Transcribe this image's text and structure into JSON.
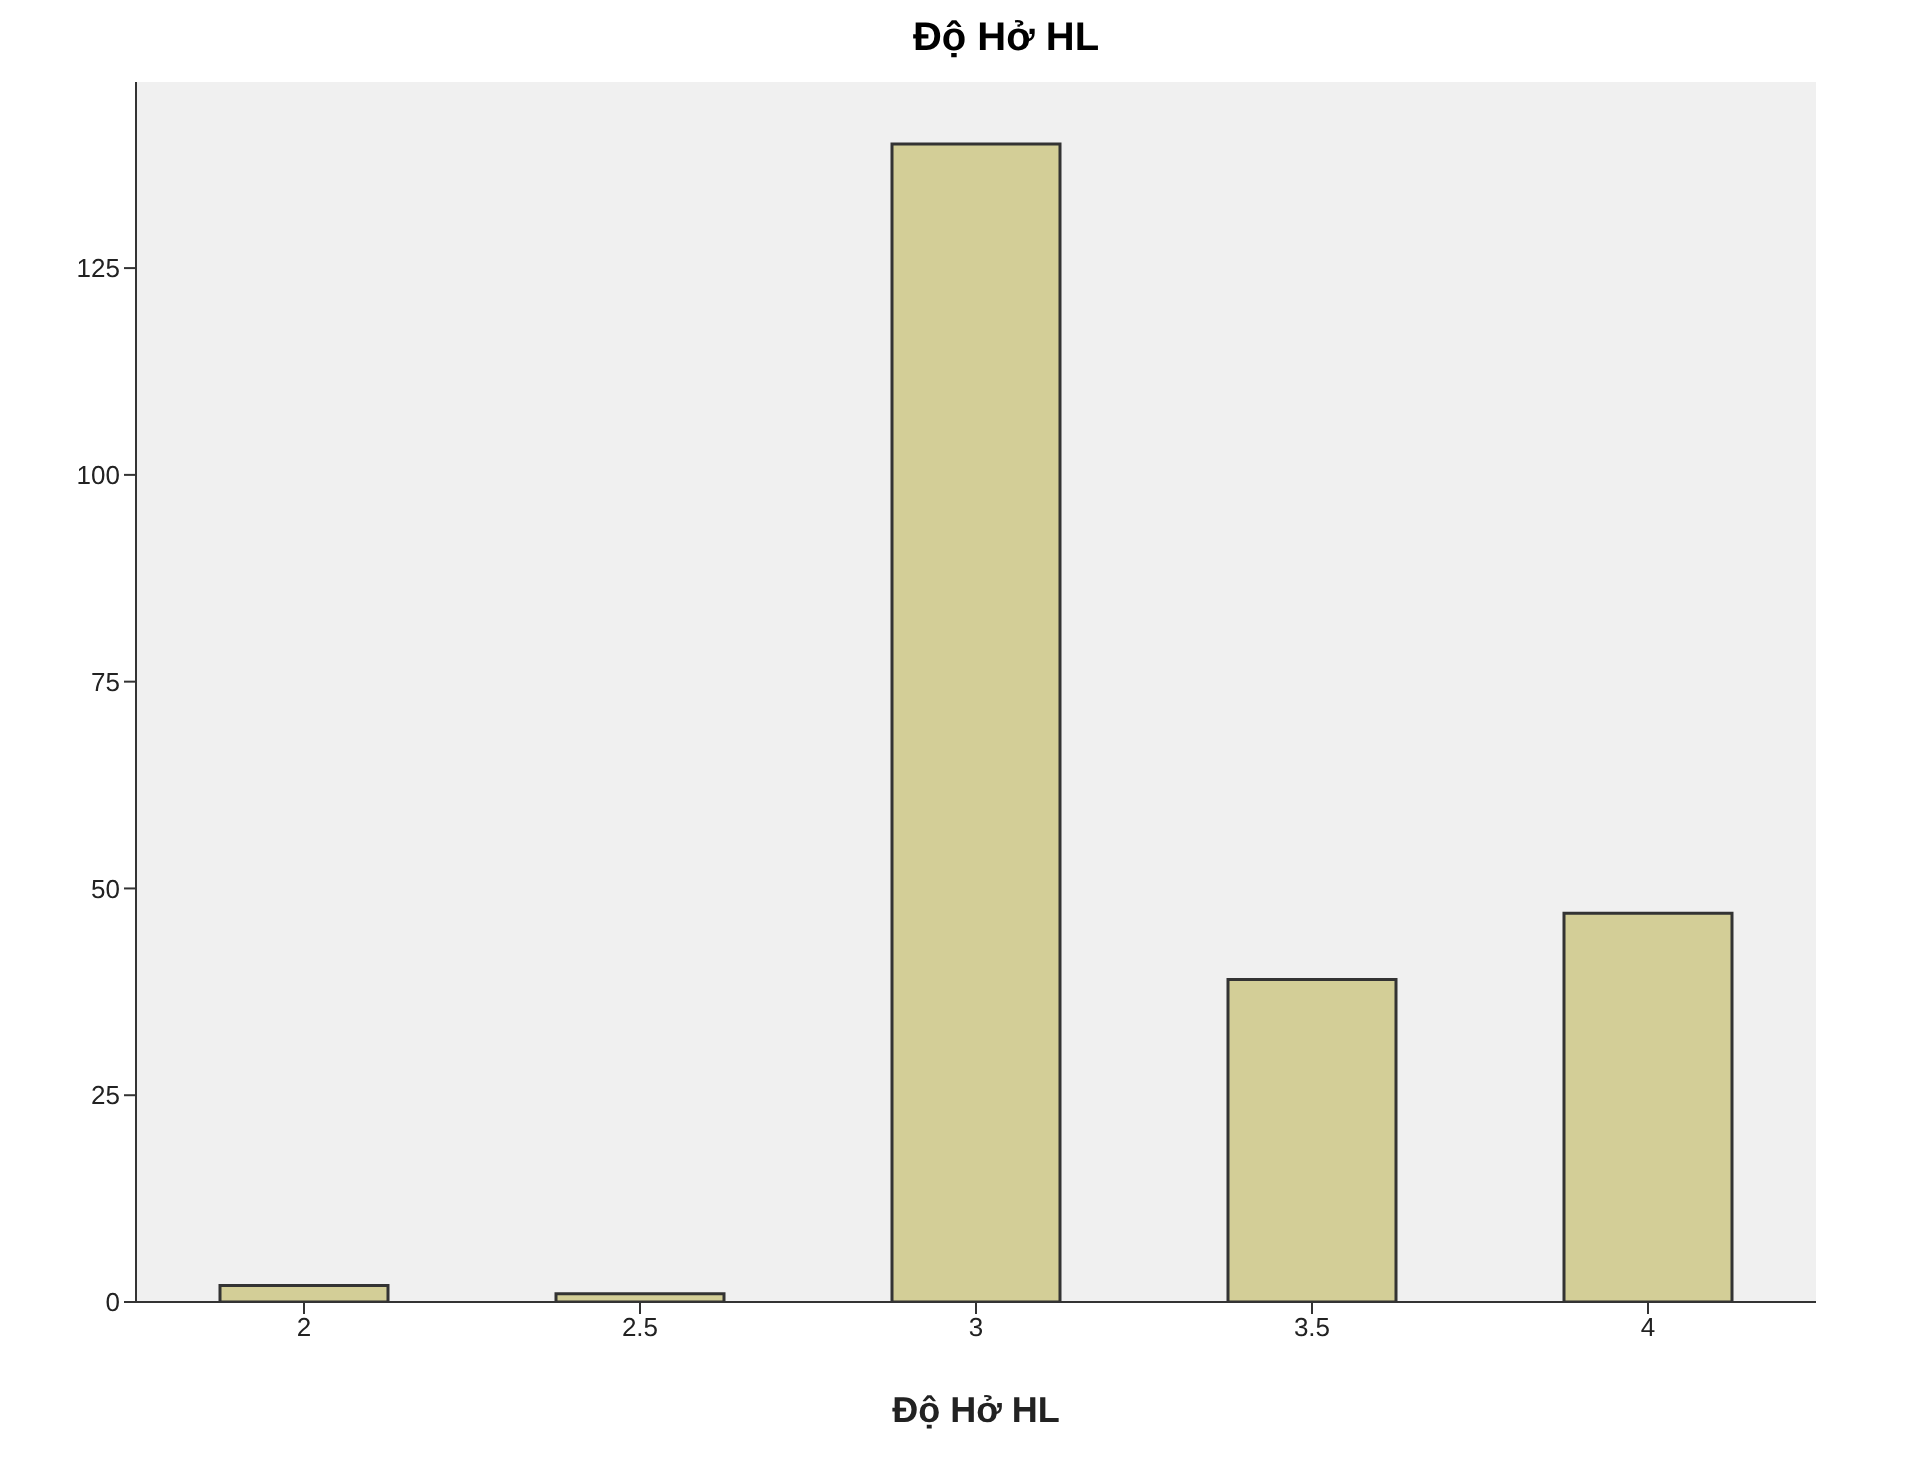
{
  "chart_data": {
    "type": "bar",
    "title": "Độ Hở HL",
    "xlabel": "Độ Hở HL",
    "categories": [
      "2",
      "2.5",
      "3",
      "3.5",
      "4"
    ],
    "values": [
      2,
      1,
      140,
      39,
      47
    ],
    "color": "#d3ce97",
    "ylim": [
      0,
      147.5
    ],
    "yticks": [
      0,
      25,
      50,
      75,
      100,
      125
    ],
    "grid": false
  }
}
